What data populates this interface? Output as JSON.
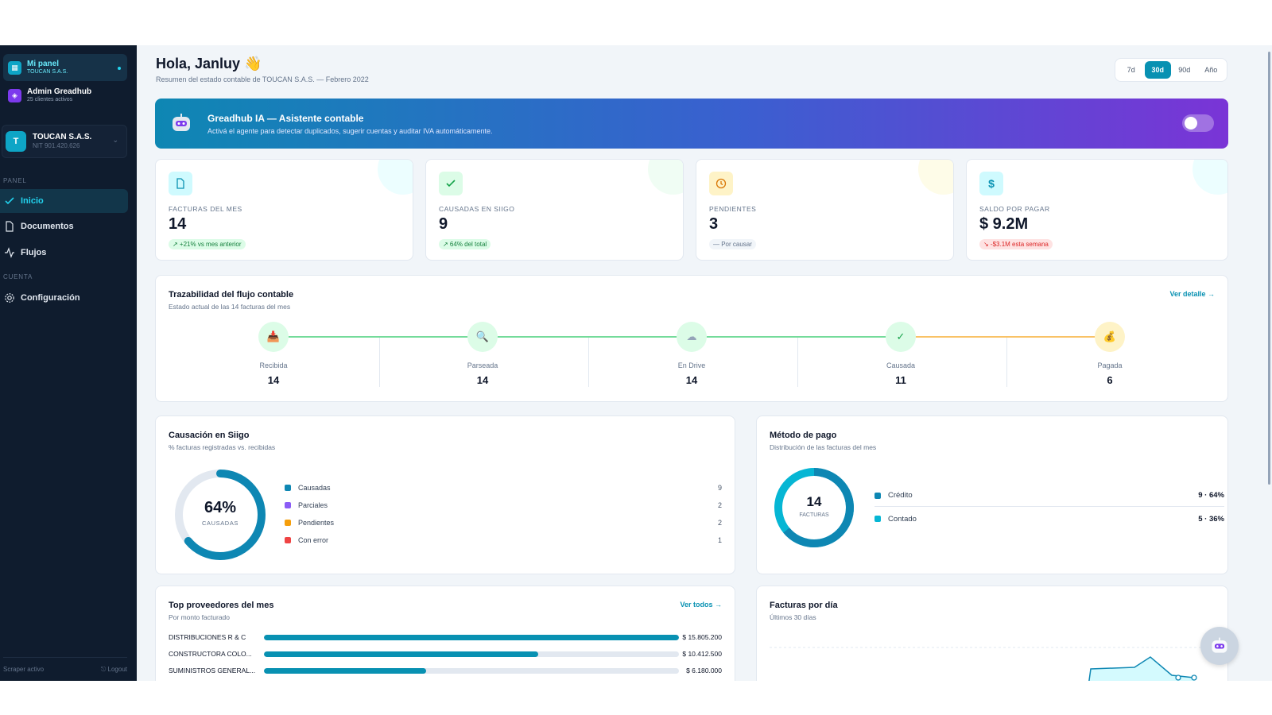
{
  "sidebar": {
    "workspaces": [
      {
        "title": "Mi panel",
        "subtitle": "TOUCAN S.A.S."
      },
      {
        "title": "Admin Greadhub",
        "subtitle": "25 clientes activos"
      }
    ],
    "company": {
      "initial": "T",
      "name": "TOUCAN S.A.S.",
      "nit": "NIT 901.420.626"
    },
    "section_panel": "PANEL",
    "section_account": "CUENTA",
    "nav": [
      {
        "label": "Inicio",
        "icon": "check-icon"
      },
      {
        "label": "Documentos",
        "icon": "document-icon"
      },
      {
        "label": "Flujos",
        "icon": "activity-icon"
      },
      {
        "label": "Configuración",
        "icon": "gear-icon"
      }
    ],
    "footer_status": "Scraper activo",
    "footer_logout": "⎋ Logout"
  },
  "header": {
    "greeting": "Hola, Janluy 👋",
    "subtitle": "Resumen del estado contable de TOUCAN S.A.S. — Febrero 2022",
    "ranges": [
      "7d",
      "30d",
      "90d",
      "Año"
    ],
    "active_range": "30d"
  },
  "banner": {
    "title": "Greadhub IA — Asistente contable",
    "subtitle": "Activá el agente para detectar duplicados, sugerir cuentas y auditar IVA automáticamente.",
    "enabled": false
  },
  "kpis": [
    {
      "label": "FACTURAS DEL MES",
      "value": "14",
      "badge": "↗ +21% vs mes anterior",
      "icon": "document-icon",
      "tone": "#06b6d4"
    },
    {
      "label": "CAUSADAS EN SIIGO",
      "value": "9",
      "badge": "↗ 64% del total",
      "icon": "check-icon",
      "tone": "#22c55e"
    },
    {
      "label": "PENDIENTES",
      "value": "3",
      "badge": "— Por causar",
      "icon": "clock-icon",
      "tone": "#f59e0b"
    },
    {
      "label": "SALDO POR PAGAR",
      "value": "$ 9.2M",
      "badge": "↘ -$3.1M esta semana",
      "icon": "dollar-icon",
      "tone": "#06b6d4"
    }
  ],
  "traceability": {
    "title": "Trazabilidad del flujo contable",
    "subtitle": "Estado actual de las 14 facturas del mes",
    "link": "Ver detalle →",
    "stages": [
      {
        "label": "Recibida",
        "value": "14",
        "glyph": "📥"
      },
      {
        "label": "Parseada",
        "value": "14",
        "glyph": "🔍"
      },
      {
        "label": "En Drive",
        "value": "14",
        "glyph": "☁"
      },
      {
        "label": "Causada",
        "value": "11",
        "glyph": "✓"
      },
      {
        "label": "Pagada",
        "value": "6",
        "glyph": "💰"
      }
    ]
  },
  "siigo": {
    "title": "Causación en Siigo",
    "subtitle": "% facturas registradas vs. recibidas",
    "percent_label": "64%",
    "center_label": "CAUSADAS",
    "fraction": 0.64,
    "items": [
      {
        "label": "Causadas",
        "value": "9",
        "color": "#0e87b3"
      },
      {
        "label": "Parciales",
        "value": "2",
        "color": "#8b5cf6"
      },
      {
        "label": "Pendientes",
        "value": "2",
        "color": "#f59e0b"
      },
      {
        "label": "Con error",
        "value": "1",
        "color": "#ef4444"
      }
    ]
  },
  "payment": {
    "title": "Método de pago",
    "subtitle": "Distribución de las facturas del mes",
    "total": "14",
    "total_label": "FACTURAS",
    "items": [
      {
        "label": "Crédito",
        "value": "9 · 64%",
        "fraction": 0.64,
        "color": "#0e87b3"
      },
      {
        "label": "Contado",
        "value": "5 · 36%",
        "fraction": 0.36,
        "color": "#06b6d4"
      }
    ]
  },
  "providers": {
    "title": "Top proveedores del mes",
    "subtitle": "Por monto facturado",
    "link": "Ver todos →",
    "rows": [
      {
        "name": "DISTRIBUCIONES R & C",
        "amount": "$ 15.805.200",
        "fraction": 1.0
      },
      {
        "name": "CONSTRUCTORA COLO...",
        "amount": "$ 10.412.500",
        "fraction": 0.66
      },
      {
        "name": "SUMINISTROS GENERAL...",
        "amount": "$ 6.180.000",
        "fraction": 0.39
      }
    ]
  },
  "daily": {
    "title": "Facturas por día",
    "subtitle": "Últimos 30 días"
  }
}
